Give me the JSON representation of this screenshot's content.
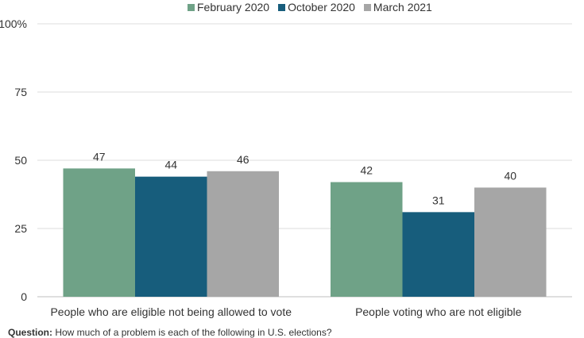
{
  "chart_data": {
    "type": "bar",
    "categories": [
      "People who are eligible not being allowed to vote",
      "People voting who are not eligible"
    ],
    "series": [
      {
        "name": "February 2020",
        "values": [
          47,
          42
        ],
        "color": "#6fa287"
      },
      {
        "name": "October 2020",
        "values": [
          44,
          31
        ],
        "color": "#175d7c"
      },
      {
        "name": "March 2021",
        "values": [
          46,
          40
        ],
        "color": "#a6a6a6"
      }
    ],
    "ylim": [
      0,
      100
    ],
    "yticks": [
      {
        "value": 0,
        "label": "0"
      },
      {
        "value": 25,
        "label": "25"
      },
      {
        "value": 50,
        "label": "50"
      },
      {
        "value": 75,
        "label": "75"
      },
      {
        "value": 100,
        "label": "100%"
      }
    ],
    "grid": true,
    "legend_position": "top-center",
    "data_labels": true
  },
  "note": {
    "label": "Question:",
    "text": "How much of a problem is each of the following in U.S. elections?"
  }
}
